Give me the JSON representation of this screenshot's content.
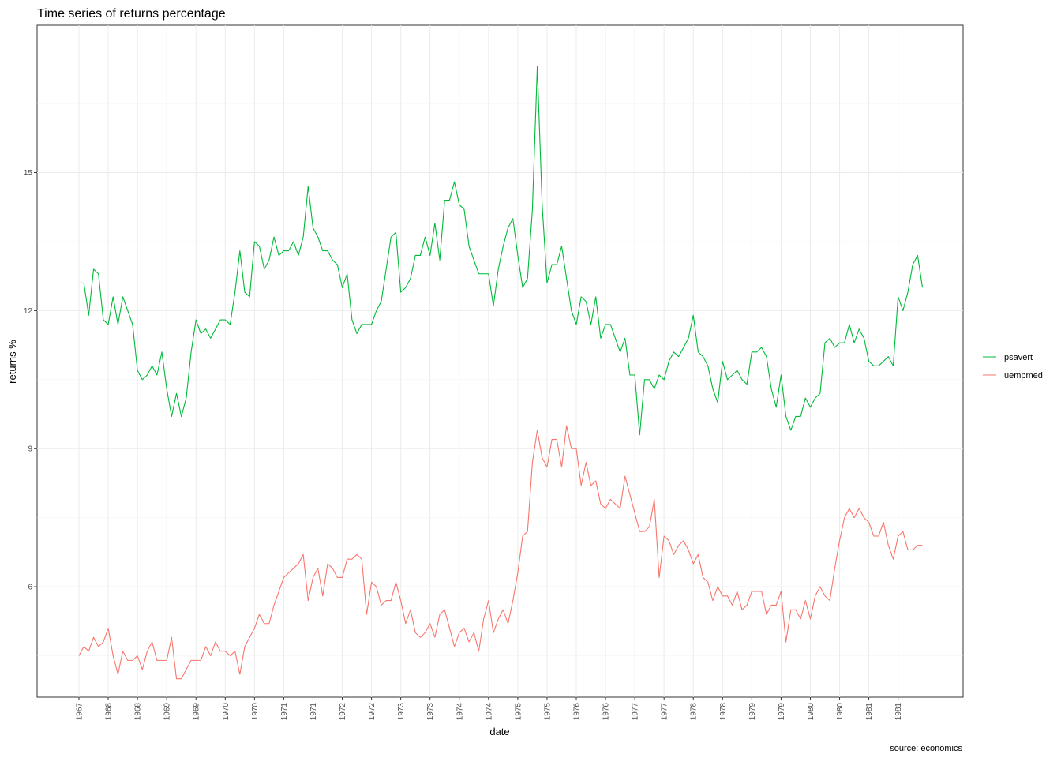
{
  "chart_data": {
    "type": "line",
    "title": "Time series of returns percentage",
    "xlabel": "date",
    "ylabel": "returns %",
    "caption": "source: economics",
    "ylim": [
      3.6,
      18.2
    ],
    "y_ticks": [
      6,
      9,
      12,
      15
    ],
    "x_ticks": [
      "1967",
      "1968",
      "1968",
      "1969",
      "1969",
      "1970",
      "1970",
      "1971",
      "1971",
      "1972",
      "1972",
      "1973",
      "1973",
      "1974",
      "1974",
      "1975",
      "1975",
      "1976",
      "1976",
      "1977",
      "1977",
      "1978",
      "1978",
      "1979",
      "1979",
      "1980",
      "1980",
      "1981",
      "1981"
    ],
    "grid": true,
    "legend_position": "right",
    "x_start": "1967-07",
    "x_frequency": "monthly",
    "series": [
      {
        "name": "psavert",
        "color": "#00BA38",
        "values": [
          12.6,
          12.6,
          11.9,
          12.9,
          12.8,
          11.8,
          11.7,
          12.3,
          11.7,
          12.3,
          12.0,
          11.7,
          10.7,
          10.5,
          10.6,
          10.8,
          10.6,
          11.1,
          10.3,
          9.7,
          10.2,
          9.7,
          10.1,
          11.1,
          11.8,
          11.5,
          11.6,
          11.4,
          11.6,
          11.8,
          11.8,
          11.7,
          12.4,
          13.3,
          12.4,
          12.3,
          13.5,
          13.4,
          12.9,
          13.1,
          13.6,
          13.2,
          13.3,
          13.3,
          13.5,
          13.2,
          13.6,
          14.7,
          13.8,
          13.6,
          13.3,
          13.3,
          13.1,
          13.0,
          12.5,
          12.8,
          11.8,
          11.5,
          11.7,
          11.7,
          11.7,
          12.0,
          12.2,
          12.9,
          13.6,
          13.7,
          12.4,
          12.5,
          12.7,
          13.2,
          13.2,
          13.6,
          13.2,
          13.9,
          13.1,
          14.4,
          14.4,
          14.8,
          14.3,
          14.2,
          13.4,
          13.1,
          12.8,
          12.8,
          12.8,
          12.1,
          12.9,
          13.4,
          13.8,
          14.0,
          13.2,
          12.5,
          12.7,
          14.2,
          17.3,
          14.3,
          12.6,
          13.0,
          13.0,
          13.4,
          12.7,
          12.0,
          11.7,
          12.3,
          12.2,
          11.7,
          12.3,
          11.4,
          11.7,
          11.7,
          11.4,
          11.1,
          11.4,
          10.6,
          10.6,
          9.3,
          10.5,
          10.5,
          10.3,
          10.6,
          10.5,
          10.9,
          11.1,
          11.0,
          11.2,
          11.4,
          11.9,
          11.1,
          11.0,
          10.8,
          10.3,
          10.0,
          10.9,
          10.5,
          10.6,
          10.7,
          10.5,
          10.4,
          11.1,
          11.1,
          11.2,
          11.0,
          10.3,
          9.9,
          10.6,
          9.7,
          9.4,
          9.7,
          9.7,
          10.1,
          9.9,
          10.1,
          10.2,
          11.3,
          11.4,
          11.2,
          11.3,
          11.3,
          11.7,
          11.3,
          11.6,
          11.4,
          10.9,
          10.8,
          10.8,
          10.9,
          11.0,
          10.8,
          12.3,
          12.0,
          12.4,
          13.0,
          13.2,
          12.5
        ]
      },
      {
        "name": "uempmed",
        "color": "#F8766D",
        "values": [
          4.5,
          4.7,
          4.6,
          4.9,
          4.7,
          4.8,
          5.1,
          4.5,
          4.1,
          4.6,
          4.4,
          4.4,
          4.5,
          4.2,
          4.6,
          4.8,
          4.4,
          4.4,
          4.4,
          4.9,
          4.0,
          4.0,
          4.2,
          4.4,
          4.4,
          4.4,
          4.7,
          4.5,
          4.8,
          4.6,
          4.6,
          4.5,
          4.6,
          4.1,
          4.7,
          4.9,
          5.1,
          5.4,
          5.2,
          5.2,
          5.6,
          5.9,
          6.2,
          6.3,
          6.4,
          6.5,
          6.7,
          5.7,
          6.2,
          6.4,
          5.8,
          6.5,
          6.4,
          6.2,
          6.2,
          6.6,
          6.6,
          6.7,
          6.6,
          5.4,
          6.1,
          6.0,
          5.6,
          5.7,
          5.7,
          6.1,
          5.7,
          5.2,
          5.5,
          5.0,
          4.9,
          5.0,
          5.2,
          4.9,
          5.4,
          5.5,
          5.1,
          4.7,
          5.0,
          5.1,
          4.8,
          5.0,
          4.6,
          5.3,
          5.7,
          5.0,
          5.3,
          5.5,
          5.2,
          5.7,
          6.3,
          7.1,
          7.2,
          8.7,
          9.4,
          8.8,
          8.6,
          9.2,
          9.2,
          8.6,
          9.5,
          9.0,
          9.0,
          8.2,
          8.7,
          8.2,
          8.3,
          7.8,
          7.7,
          7.9,
          7.8,
          7.7,
          8.4,
          8.0,
          7.6,
          7.2,
          7.2,
          7.3,
          7.9,
          6.2,
          7.1,
          7.0,
          6.7,
          6.9,
          7.0,
          6.8,
          6.5,
          6.7,
          6.2,
          6.1,
          5.7,
          6.0,
          5.8,
          5.8,
          5.6,
          5.9,
          5.5,
          5.6,
          5.9,
          5.9,
          5.9,
          5.4,
          5.6,
          5.6,
          5.9,
          4.8,
          5.5,
          5.5,
          5.3,
          5.7,
          5.3,
          5.8,
          6.0,
          5.8,
          5.7,
          6.4,
          7.0,
          7.5,
          7.7,
          7.5,
          7.7,
          7.5,
          7.4,
          7.1,
          7.1,
          7.4,
          6.9,
          6.6,
          7.1,
          7.2,
          6.8,
          6.8,
          6.9,
          6.9
        ]
      }
    ]
  }
}
